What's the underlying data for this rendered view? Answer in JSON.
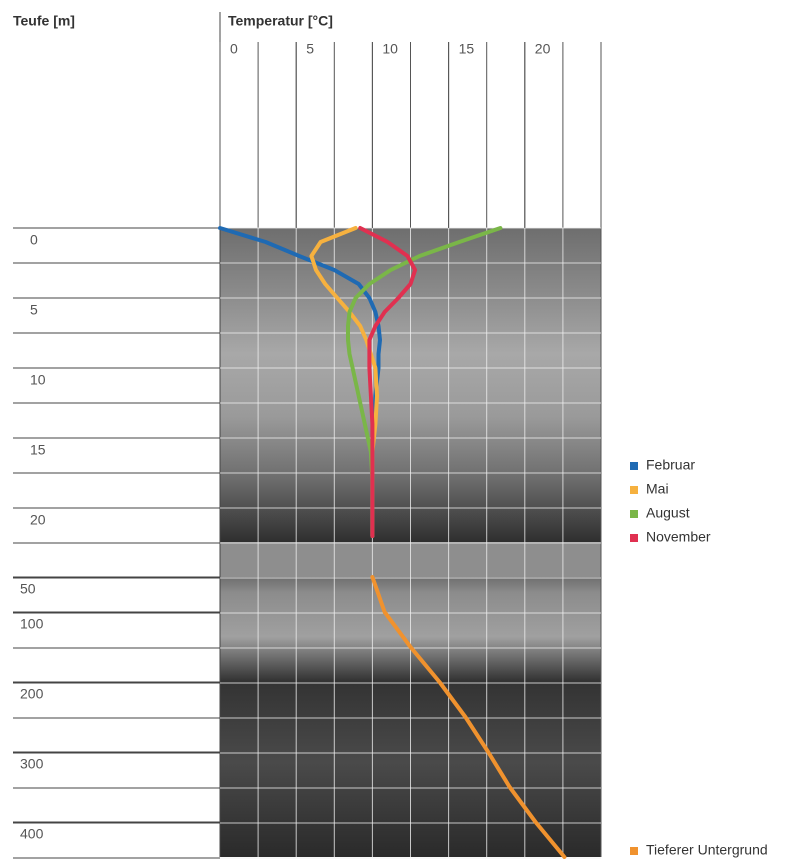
{
  "chart_data": [
    {
      "type": "line",
      "title": "Temperatur [°C]",
      "y_label": "Teufe [m]",
      "xlim": [
        0,
        25
      ],
      "xticks": [
        0,
        5,
        10,
        15,
        20
      ],
      "ylim": [
        0,
        22.5
      ],
      "yticks": [
        0,
        5,
        10,
        15,
        20
      ],
      "y_inverted": true,
      "depth": [
        0,
        1,
        2,
        3,
        4,
        5,
        6,
        7,
        8,
        9,
        10,
        12,
        14,
        16,
        18,
        20,
        22
      ],
      "series": [
        {
          "name": "Februar",
          "color": "#1f6ab3",
          "values": [
            0.0,
            3.0,
            5.2,
            7.5,
            9.1,
            9.8,
            10.2,
            10.4,
            10.5,
            10.4,
            10.4,
            10.2,
            10.1,
            10.0,
            10.0,
            10.0,
            10.0
          ]
        },
        {
          "name": "Mai",
          "color": "#f6b13f",
          "values": [
            8.9,
            6.6,
            6.0,
            6.3,
            6.9,
            7.7,
            8.5,
            9.2,
            9.6,
            9.9,
            10.2,
            10.3,
            10.2,
            10.0,
            10.0,
            10.0,
            10.0
          ]
        },
        {
          "name": "August",
          "color": "#7ab648",
          "values": [
            18.4,
            15.7,
            13.1,
            11.2,
            9.8,
            8.9,
            8.5,
            8.4,
            8.4,
            8.5,
            8.7,
            9.1,
            9.5,
            9.9,
            10.0,
            10.0,
            10.0
          ]
        },
        {
          "name": "November",
          "color": "#e03050",
          "values": [
            9.2,
            11.0,
            12.3,
            12.8,
            12.5,
            11.7,
            10.8,
            10.2,
            9.8,
            9.8,
            9.8,
            9.9,
            10.0,
            10.0,
            10.0,
            10.0,
            10.0
          ]
        }
      ]
    },
    {
      "type": "line",
      "xlim": [
        0,
        25
      ],
      "ylim": [
        50,
        450
      ],
      "yticks": [
        50,
        100,
        200,
        300,
        400
      ],
      "y_inverted": true,
      "depth": [
        50,
        100,
        150,
        200,
        250,
        300,
        350,
        400,
        450
      ],
      "series": [
        {
          "name": "Tieferer Untergrund",
          "color": "#f0922e",
          "values": [
            10.0,
            10.8,
            12.5,
            14.4,
            16.1,
            17.6,
            19.0,
            20.7,
            22.6
          ]
        }
      ]
    }
  ]
}
